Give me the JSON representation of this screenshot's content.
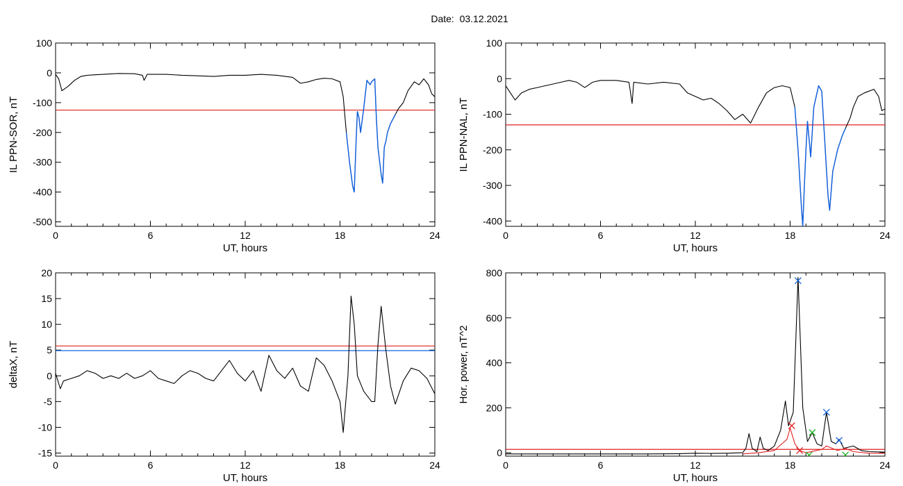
{
  "figure": {
    "title": "Date:  03.12.2021"
  },
  "colors": {
    "line": "#000000",
    "threshold": "#e02020",
    "highlight": "#1060e0",
    "green": "#20b020",
    "axis": "#000000"
  },
  "chart_data": [
    {
      "type": "line",
      "ylabel": "IL PPN-SOR, nT",
      "xlabel": "UT, hours",
      "xlim": [
        0,
        24
      ],
      "ylim": [
        -515,
        100
      ],
      "xticks": [
        0,
        6,
        12,
        18,
        24
      ],
      "yticks": [
        100,
        0,
        -100,
        -200,
        -300,
        -400,
        -500
      ],
      "threshold": -125,
      "highlight_ranges": [
        [
          18.3,
          21.5
        ]
      ],
      "series": [
        {
          "values": [
            [
              0,
              -5
            ],
            [
              0.2,
              -20
            ],
            [
              0.4,
              -60
            ],
            [
              0.8,
              -45
            ],
            [
              1.2,
              -25
            ],
            [
              1.6,
              -12
            ],
            [
              2,
              -8
            ],
            [
              3,
              -5
            ],
            [
              4,
              -2
            ],
            [
              5,
              -3
            ],
            [
              5.5,
              -8
            ],
            [
              5.6,
              -25
            ],
            [
              5.8,
              -5
            ],
            [
              7,
              -5
            ],
            [
              8,
              -8
            ],
            [
              9,
              -10
            ],
            [
              10,
              -12
            ],
            [
              11,
              -8
            ],
            [
              12,
              -8
            ],
            [
              13,
              -5
            ],
            [
              14,
              -8
            ],
            [
              15,
              -15
            ],
            [
              15.5,
              -35
            ],
            [
              16,
              -30
            ],
            [
              16.5,
              -22
            ],
            [
              17,
              -18
            ],
            [
              17.5,
              -20
            ],
            [
              18,
              -30
            ],
            [
              18.2,
              -80
            ],
            [
              18.4,
              -200
            ],
            [
              18.6,
              -300
            ],
            [
              18.8,
              -380
            ],
            [
              18.9,
              -400
            ],
            [
              19,
              -250
            ],
            [
              19.1,
              -130
            ],
            [
              19.2,
              -150
            ],
            [
              19.3,
              -200
            ],
            [
              19.5,
              -120
            ],
            [
              19.7,
              -25
            ],
            [
              19.9,
              -40
            ],
            [
              20,
              -30
            ],
            [
              20.2,
              -20
            ],
            [
              20.3,
              -150
            ],
            [
              20.4,
              -250
            ],
            [
              20.6,
              -340
            ],
            [
              20.7,
              -370
            ],
            [
              20.8,
              -250
            ],
            [
              20.9,
              -230
            ],
            [
              21,
              -200
            ],
            [
              21.2,
              -170
            ],
            [
              21.5,
              -140
            ],
            [
              21.7,
              -120
            ],
            [
              22,
              -100
            ],
            [
              22.3,
              -60
            ],
            [
              22.7,
              -30
            ],
            [
              23,
              -40
            ],
            [
              23.3,
              -20
            ],
            [
              23.6,
              -40
            ],
            [
              23.8,
              -70
            ],
            [
              24,
              -80
            ]
          ]
        }
      ]
    },
    {
      "type": "line",
      "ylabel": "IL PPN-NAL, nT",
      "xlabel": "UT, hours",
      "xlim": [
        0,
        24
      ],
      "ylim": [
        -415,
        100
      ],
      "xticks": [
        0,
        6,
        12,
        18,
        24
      ],
      "yticks": [
        100,
        0,
        -100,
        -200,
        -300,
        -400
      ],
      "threshold": -130,
      "highlight_ranges": [
        [
          18.3,
          21.5
        ]
      ],
      "series": [
        {
          "values": [
            [
              0,
              -20
            ],
            [
              0.3,
              -40
            ],
            [
              0.6,
              -60
            ],
            [
              1,
              -40
            ],
            [
              1.5,
              -30
            ],
            [
              2,
              -25
            ],
            [
              2.5,
              -20
            ],
            [
              3,
              -15
            ],
            [
              3.5,
              -10
            ],
            [
              4,
              -5
            ],
            [
              4.5,
              -10
            ],
            [
              5,
              -25
            ],
            [
              5.5,
              -10
            ],
            [
              6,
              -5
            ],
            [
              7,
              -5
            ],
            [
              7.8,
              -10
            ],
            [
              8,
              -70
            ],
            [
              8.1,
              -10
            ],
            [
              9,
              -15
            ],
            [
              10,
              -10
            ],
            [
              11,
              -15
            ],
            [
              11.5,
              -40
            ],
            [
              12,
              -50
            ],
            [
              12.5,
              -60
            ],
            [
              13,
              -55
            ],
            [
              13.5,
              -70
            ],
            [
              14,
              -90
            ],
            [
              14.5,
              -115
            ],
            [
              15,
              -100
            ],
            [
              15.5,
              -125
            ],
            [
              16,
              -80
            ],
            [
              16.5,
              -40
            ],
            [
              17,
              -25
            ],
            [
              17.5,
              -20
            ],
            [
              18,
              -25
            ],
            [
              18.3,
              -80
            ],
            [
              18.5,
              -200
            ],
            [
              18.7,
              -350
            ],
            [
              18.8,
              -415
            ],
            [
              18.9,
              -300
            ],
            [
              19,
              -200
            ],
            [
              19.1,
              -120
            ],
            [
              19.3,
              -220
            ],
            [
              19.5,
              -80
            ],
            [
              19.8,
              -20
            ],
            [
              20,
              -35
            ],
            [
              20.2,
              -180
            ],
            [
              20.4,
              -330
            ],
            [
              20.5,
              -370
            ],
            [
              20.7,
              -260
            ],
            [
              21,
              -200
            ],
            [
              21.3,
              -160
            ],
            [
              21.5,
              -140
            ],
            [
              21.8,
              -110
            ],
            [
              22,
              -80
            ],
            [
              22.3,
              -50
            ],
            [
              22.7,
              -40
            ],
            [
              23,
              -35
            ],
            [
              23.3,
              -30
            ],
            [
              23.6,
              -50
            ],
            [
              23.8,
              -90
            ],
            [
              24,
              -85
            ]
          ]
        }
      ]
    },
    {
      "type": "line",
      "ylabel": "deltaX, nT",
      "xlabel": "UT, hours",
      "xlim": [
        0,
        24
      ],
      "ylim": [
        -15.6,
        20
      ],
      "xticks": [
        0,
        6,
        12,
        18,
        24
      ],
      "yticks": [
        20,
        15,
        10,
        5,
        0,
        -5,
        -10,
        -15
      ],
      "threshold": 5.8,
      "threshold2": 4.9,
      "series": [
        {
          "values": [
            [
              0,
              0.5
            ],
            [
              0.3,
              -2.5
            ],
            [
              0.5,
              -1
            ],
            [
              1,
              -0.5
            ],
            [
              1.5,
              0
            ],
            [
              2,
              1
            ],
            [
              2.5,
              0.5
            ],
            [
              3,
              -0.5
            ],
            [
              3.5,
              0
            ],
            [
              4,
              -0.5
            ],
            [
              4.5,
              0.5
            ],
            [
              5,
              -0.5
            ],
            [
              5.5,
              0
            ],
            [
              6,
              1
            ],
            [
              6.5,
              -0.5
            ],
            [
              7,
              -1
            ],
            [
              7.5,
              -1.5
            ],
            [
              8,
              0
            ],
            [
              8.5,
              1
            ],
            [
              9,
              0.5
            ],
            [
              9.5,
              -0.5
            ],
            [
              10,
              -1
            ],
            [
              10.5,
              1
            ],
            [
              11,
              3
            ],
            [
              11.5,
              0.5
            ],
            [
              12,
              -1
            ],
            [
              12.5,
              1
            ],
            [
              13,
              -3
            ],
            [
              13.5,
              4
            ],
            [
              14,
              1
            ],
            [
              14.5,
              -0.5
            ],
            [
              15,
              1.5
            ],
            [
              15.5,
              -2
            ],
            [
              16,
              -3
            ],
            [
              16.5,
              3.5
            ],
            [
              17,
              2
            ],
            [
              17.5,
              -1
            ],
            [
              18,
              -5
            ],
            [
              18.2,
              -11
            ],
            [
              18.5,
              0
            ],
            [
              18.7,
              15.5
            ],
            [
              18.9,
              10
            ],
            [
              19.1,
              0
            ],
            [
              19.5,
              -3
            ],
            [
              20,
              -5
            ],
            [
              20.2,
              -5
            ],
            [
              20.4,
              6
            ],
            [
              20.6,
              13.5
            ],
            [
              20.9,
              5
            ],
            [
              21.2,
              -2
            ],
            [
              21.5,
              -5.5
            ],
            [
              22,
              -1
            ],
            [
              22.5,
              1.5
            ],
            [
              23,
              1
            ],
            [
              23.5,
              -0.5
            ],
            [
              24,
              -3.5
            ]
          ]
        }
      ]
    },
    {
      "type": "line",
      "ylabel": "Hor. power, nT^2",
      "xlabel": "UT, hours",
      "xlim": [
        0,
        24
      ],
      "ylim": [
        -15,
        800
      ],
      "xticks": [
        0,
        6,
        12,
        18,
        24
      ],
      "yticks": [
        800,
        600,
        400,
        200,
        0
      ],
      "threshold": 15,
      "series": [
        {
          "color": "black",
          "values": [
            [
              0,
              -5
            ],
            [
              3,
              -5
            ],
            [
              6,
              -5
            ],
            [
              9,
              -5
            ],
            [
              11,
              -4
            ],
            [
              12,
              -2
            ],
            [
              13,
              -3
            ],
            [
              14,
              -2
            ],
            [
              15,
              0
            ],
            [
              15.2,
              20
            ],
            [
              15.4,
              85
            ],
            [
              15.6,
              20
            ],
            [
              15.9,
              5
            ],
            [
              16.1,
              70
            ],
            [
              16.3,
              20
            ],
            [
              16.6,
              10
            ],
            [
              17,
              30
            ],
            [
              17.4,
              100
            ],
            [
              17.7,
              230
            ],
            [
              17.9,
              120
            ],
            [
              18.2,
              180
            ],
            [
              18.5,
              780
            ],
            [
              18.8,
              200
            ],
            [
              19.1,
              50
            ],
            [
              19.4,
              90
            ],
            [
              19.7,
              40
            ],
            [
              20,
              30
            ],
            [
              20.3,
              180
            ],
            [
              20.6,
              50
            ],
            [
              20.9,
              40
            ],
            [
              21.1,
              60
            ],
            [
              21.4,
              20
            ],
            [
              21.7,
              25
            ],
            [
              22,
              30
            ],
            [
              22.5,
              10
            ],
            [
              23,
              5
            ],
            [
              24,
              3
            ]
          ]
        },
        {
          "color": "red",
          "values": [
            [
              15,
              -5
            ],
            [
              16,
              0
            ],
            [
              17,
              10
            ],
            [
              17.8,
              60
            ],
            [
              18,
              110
            ],
            [
              18.3,
              40
            ],
            [
              18.6,
              10
            ],
            [
              19,
              0
            ],
            [
              20,
              15
            ],
            [
              20.3,
              30
            ],
            [
              21,
              10
            ],
            [
              21.5,
              20
            ],
            [
              22,
              5
            ],
            [
              23,
              -2
            ],
            [
              24,
              -2
            ]
          ]
        }
      ],
      "markers": [
        {
          "x": 18.5,
          "y": 765,
          "color": "blue"
        },
        {
          "x": 20.3,
          "y": 180,
          "color": "blue"
        },
        {
          "x": 21.1,
          "y": 55,
          "color": "blue"
        },
        {
          "x": 19.4,
          "y": 90,
          "color": "green"
        },
        {
          "x": 21.5,
          "y": -10,
          "color": "green"
        },
        {
          "x": 18.1,
          "y": 120,
          "color": "red"
        },
        {
          "x": 18.6,
          "y": 10,
          "color": "red"
        },
        {
          "x": 19.2,
          "y": -10,
          "color": "green"
        }
      ]
    }
  ]
}
